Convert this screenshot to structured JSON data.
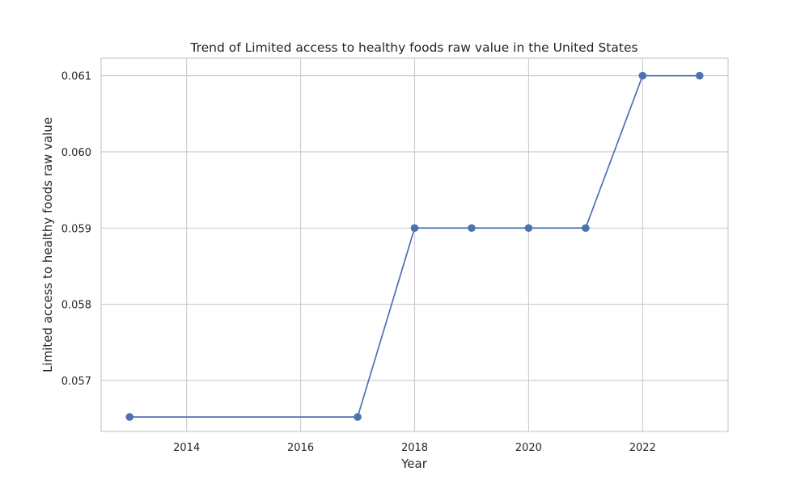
{
  "chart_data": {
    "type": "line",
    "title": "Trend of Limited access to healthy foods raw value in the United States",
    "xlabel": "Year",
    "ylabel": "Limited access to healthy foods raw value",
    "x": [
      2013,
      2017,
      2018,
      2019,
      2020,
      2021,
      2022,
      2023
    ],
    "series": [
      {
        "values": [
          0.05652,
          0.05652,
          0.059,
          0.059,
          0.059,
          0.059,
          0.061,
          0.061
        ],
        "color": "#4c72b0",
        "marker": "circle"
      }
    ],
    "xlim": [
      2012.5,
      2023.5
    ],
    "ylim": [
      0.05633,
      0.06123
    ],
    "xticks": [
      2014,
      2016,
      2018,
      2020,
      2022
    ],
    "xtick_labels": [
      "2014",
      "2016",
      "2018",
      "2020",
      "2022"
    ],
    "yticks": [
      0.057,
      0.058,
      0.059,
      0.06,
      0.061
    ],
    "ytick_labels": [
      "0.057",
      "0.058",
      "0.059",
      "0.060",
      "0.061"
    ],
    "grid": true,
    "legend": false
  }
}
